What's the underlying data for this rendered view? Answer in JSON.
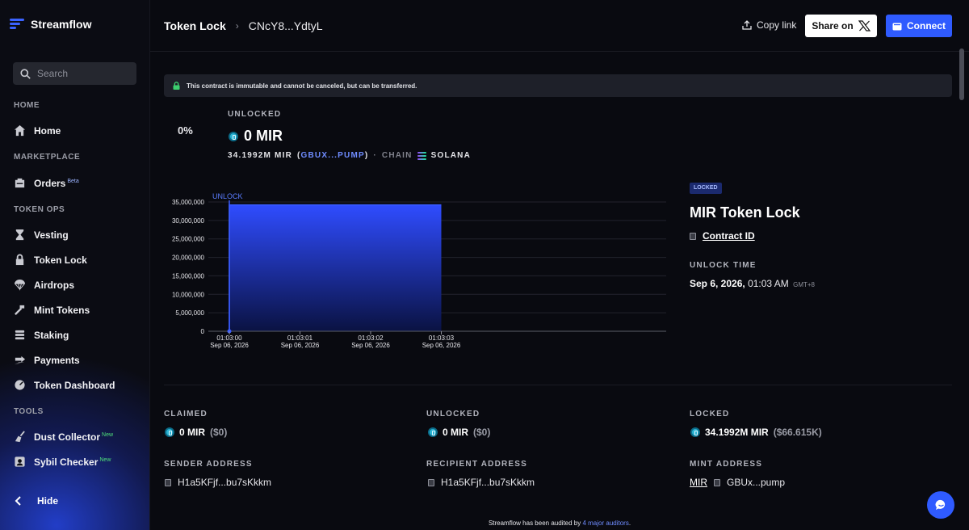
{
  "app": {
    "name": "Streamflow"
  },
  "sidebar": {
    "search_placeholder": "Search",
    "sections": {
      "home": "HOME",
      "marketplace": "MARKETPLACE",
      "token_ops": "TOKEN OPS",
      "tools": "TOOLS"
    },
    "items": {
      "home": "Home",
      "orders": "Orders",
      "orders_badge": "Beta",
      "vesting": "Vesting",
      "token_lock": "Token Lock",
      "airdrops": "Airdrops",
      "mint_tokens": "Mint Tokens",
      "staking": "Staking",
      "payments": "Payments",
      "token_dashboard": "Token Dashboard",
      "dust_collector": "Dust Collector",
      "dust_collector_badge": "New",
      "sybil_checker": "Sybil Checker",
      "sybil_checker_badge": "New"
    },
    "hide_label": "Hide"
  },
  "header": {
    "breadcrumb_main": "Token Lock",
    "breadcrumb_id": "CNcY8...YdtyL",
    "copy_link": "Copy link",
    "share_label": "Share on",
    "connect_label": "Connect"
  },
  "notice": "This contract is immutable and cannot be canceled, but can be transferred.",
  "summary": {
    "percent": "0%",
    "unlocked_label": "UNLOCKED",
    "unlocked_amount": "0 MIR",
    "total_amount": "34.1992M MIR",
    "mint_short": "GBUX...PUMP",
    "chain_label": "CHAIN",
    "chain_name": "SOLANA"
  },
  "chart_data": {
    "type": "area",
    "annotation": "UNLOCK",
    "y_ticks": [
      "35,000,000",
      "30,000,000",
      "25,000,000",
      "20,000,000",
      "15,000,000",
      "10,000,000",
      "5,000,000",
      "0"
    ],
    "ylim": [
      0,
      35000000
    ],
    "x_ticks": [
      {
        "time": "01:03:00",
        "date": "Sep 06, 2026"
      },
      {
        "time": "01:03:01",
        "date": "Sep 06, 2026"
      },
      {
        "time": "01:03:02",
        "date": "Sep 06, 2026"
      },
      {
        "time": "01:03:03",
        "date": "Sep 06, 2026"
      }
    ],
    "series": [
      {
        "x": [
          "01:03:00",
          "01:03:00",
          "01:03:03"
        ],
        "y": [
          0,
          34199200,
          34199200
        ]
      }
    ],
    "grid": true,
    "color": "#2f4cff"
  },
  "lock_panel": {
    "status_badge": "LOCKED",
    "title": "MIR Token Lock",
    "contract_id_label": "Contract ID",
    "unlock_time_label": "UNLOCK TIME",
    "unlock_date": "Sep 6, 2026,",
    "unlock_clock": "01:03 AM",
    "timezone": "GMT+8"
  },
  "stats": {
    "claimed_label": "CLAIMED",
    "claimed_value": "0 MIR",
    "claimed_usd": "($0)",
    "unlocked_label": "UNLOCKED",
    "unlocked_value": "0 MIR",
    "unlocked_usd": "($0)",
    "locked_label": "LOCKED",
    "locked_value": "34.1992M MIR",
    "locked_usd": "($66.615K)",
    "sender_label": "SENDER ADDRESS",
    "sender_value": "H1a5KFjf...bu7sKkkm",
    "recipient_label": "RECIPIENT ADDRESS",
    "recipient_value": "H1a5KFjf...bu7sKkkm",
    "mint_label": "MINT ADDRESS",
    "mint_link": "MIR",
    "mint_value": "GBUx...pump"
  },
  "footer": {
    "prefix": "Streamflow has been audited by",
    "link": "4 major auditors",
    "suffix": "."
  },
  "colors": {
    "accent": "#2f5bff",
    "background": "#090a10"
  }
}
